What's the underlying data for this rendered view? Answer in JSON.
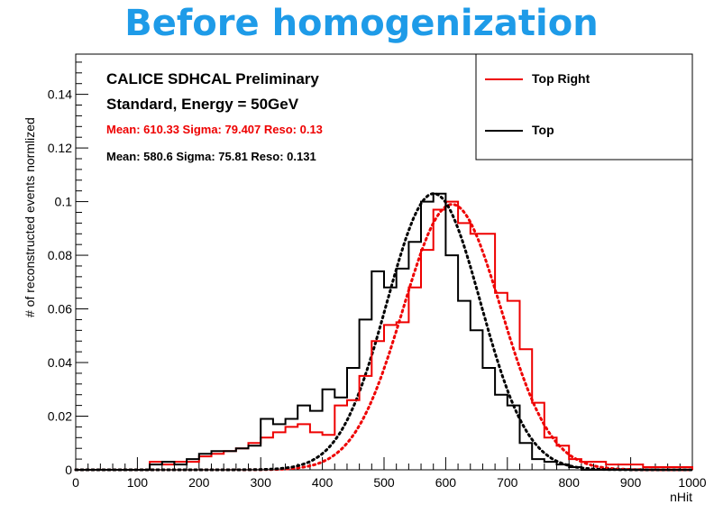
{
  "slide_title": "Before homogenization",
  "colors": {
    "title": "#1e9be8",
    "red": "#ee0000",
    "black": "#000000"
  },
  "chart_data": {
    "type": "step-histogram",
    "xlabel": "nHit",
    "ylabel": "# of reconstructed events normlized",
    "xlim": [
      0,
      1000
    ],
    "ylim": [
      0,
      0.155
    ],
    "x_ticks": [
      0,
      100,
      200,
      300,
      400,
      500,
      600,
      700,
      800,
      900,
      1000
    ],
    "y_ticks": [
      0,
      0.02,
      0.04,
      0.06,
      0.08,
      0.1,
      0.12,
      0.14
    ],
    "y_tick_labels": [
      "0",
      "0.02",
      "0.04",
      "0.06",
      "0.08",
      "0.1",
      "0.12",
      "0.14"
    ],
    "annotations": {
      "line1": "CALICE SDHCAL Preliminary",
      "line2": "Standard, Energy = 50GeV",
      "stats_red": "Mean: 610.33 Sigma: 79.407  Reso: 0.13",
      "stats_black": "Mean: 580.6 Sigma: 75.81  Reso: 0.131"
    },
    "legend": [
      {
        "label": "Top Right",
        "color": "#ee0000"
      },
      {
        "label": "Top",
        "color": "#000000"
      }
    ],
    "bin_width": 20,
    "series": [
      {
        "name": "Top Right",
        "color": "#ee0000",
        "bin_start": 120,
        "values": [
          0.003,
          0.002,
          0.003,
          0.003,
          0.005,
          0.006,
          0.007,
          0.008,
          0.01,
          0.012,
          0.014,
          0.016,
          0.017,
          0.014,
          0.013,
          0.024,
          0.026,
          0.035,
          0.048,
          0.054,
          0.055,
          0.068,
          0.082,
          0.097,
          0.1,
          0.092,
          0.088,
          0.088,
          0.066,
          0.063,
          0.045,
          0.025,
          0.012,
          0.009,
          0.004,
          0.003,
          0.003,
          0.002,
          0.002,
          0.002,
          0.001,
          0.001,
          0.001,
          0.001
        ]
      },
      {
        "name": "Top",
        "color": "#000000",
        "bin_start": 120,
        "values": [
          0.002,
          0.003,
          0.002,
          0.004,
          0.006,
          0.007,
          0.007,
          0.008,
          0.009,
          0.019,
          0.017,
          0.019,
          0.024,
          0.022,
          0.03,
          0.027,
          0.038,
          0.056,
          0.074,
          0.068,
          0.075,
          0.085,
          0.1,
          0.103,
          0.08,
          0.063,
          0.052,
          0.038,
          0.028,
          0.024,
          0.01,
          0.004,
          0.003,
          0.002,
          0.001
        ]
      }
    ],
    "fits": [
      {
        "name": "Top Right fit",
        "color": "#ee0000",
        "mean": 610.33,
        "sigma": 79.407,
        "peak": 0.099
      },
      {
        "name": "Top fit",
        "color": "#000000",
        "mean": 580.6,
        "sigma": 75.81,
        "peak": 0.103
      }
    ]
  }
}
